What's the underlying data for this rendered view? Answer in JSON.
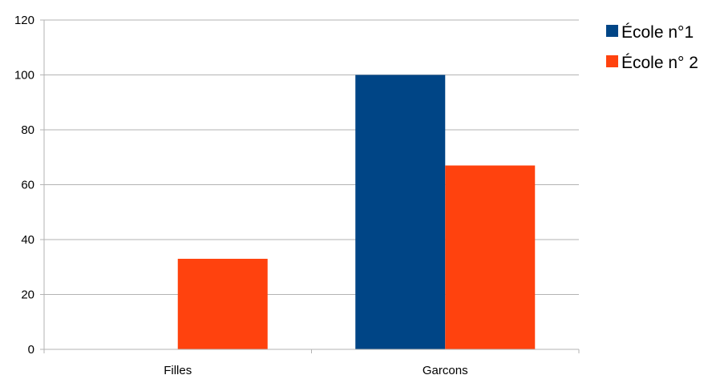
{
  "chart_data": {
    "type": "bar",
    "title": "",
    "xlabel": "",
    "ylabel": "",
    "categories": [
      "Filles",
      "Garcons"
    ],
    "series": [
      {
        "name": "École n°1",
        "values": [
          0,
          100
        ],
        "color": "#004586"
      },
      {
        "name": "École n° 2",
        "values": [
          33,
          67
        ],
        "color": "#ff420e"
      }
    ],
    "ylim": [
      0,
      120
    ],
    "yticks": [
      "0",
      "20",
      "40",
      "60",
      "80",
      "100",
      "120"
    ],
    "grid": true,
    "legend_position": "right"
  }
}
